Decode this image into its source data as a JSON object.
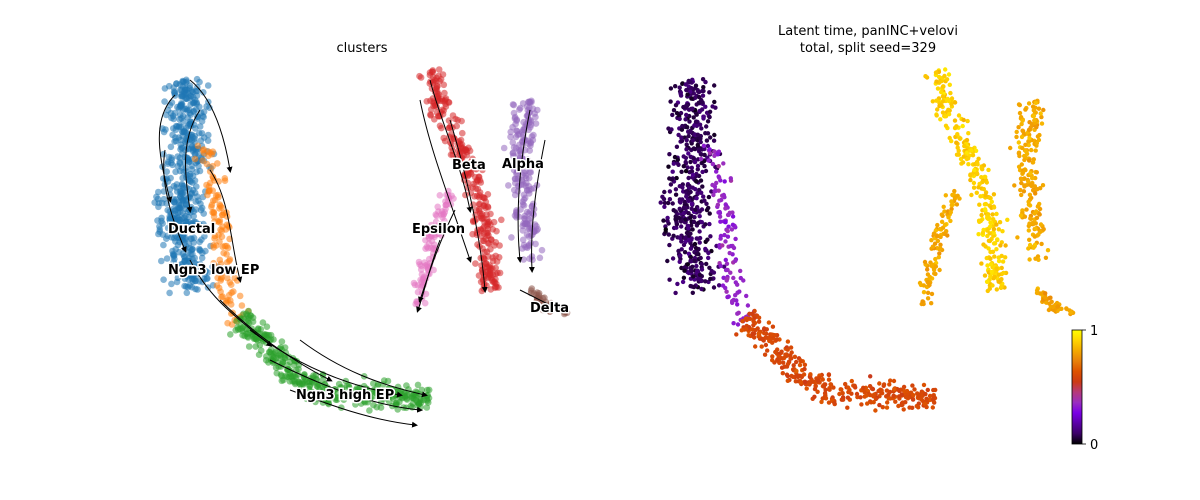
{
  "chart_data": [
    {
      "type": "scatter",
      "title": "clusters",
      "xlabel": "",
      "ylabel": "",
      "grid": false,
      "legend": "on data",
      "overlay": "velocity streamlines (black, arrowheads)",
      "series": [
        {
          "name": "Ductal",
          "color": "#1f77b4"
        },
        {
          "name": "Ngn3 low EP",
          "color": "#ff7f0e"
        },
        {
          "name": "Ngn3 high EP",
          "color": "#2ca02c"
        },
        {
          "name": "Beta",
          "color": "#d62728"
        },
        {
          "name": "Alpha",
          "color": "#9467bd"
        },
        {
          "name": "Epsilon",
          "color": "#e377c2"
        },
        {
          "name": "Delta",
          "color": "#8c564b"
        }
      ]
    },
    {
      "type": "scatter",
      "title": "Latent time, panINC+velovi",
      "subtitle": "total, split seed=329",
      "xlabel": "",
      "ylabel": "",
      "grid": false,
      "colormap": "gnuplot",
      "colorbar": {
        "min": 0,
        "max": 1,
        "ticks": [
          "0",
          "1"
        ]
      },
      "color_value_by_region": [
        {
          "region": "Ductal",
          "latent_time": 0.08
        },
        {
          "region": "Ngn3 low EP",
          "latent_time": 0.35
        },
        {
          "region": "Ngn3 high EP",
          "latent_time": 0.6
        },
        {
          "region": "Epsilon",
          "latent_time": 0.82
        },
        {
          "region": "Beta",
          "latent_time": 0.9
        },
        {
          "region": "Alpha",
          "latent_time": 0.82
        },
        {
          "region": "Delta",
          "latent_time": 0.8
        }
      ]
    }
  ],
  "colors": {
    "cmap": [
      "#000000",
      "#3b0066",
      "#5a00a6",
      "#7a00e6",
      "#9a2fc0",
      "#b53a7a",
      "#cc3a14",
      "#dd5200",
      "#e8800a",
      "#f4a900",
      "#ffd400",
      "#ffff00"
    ]
  }
}
